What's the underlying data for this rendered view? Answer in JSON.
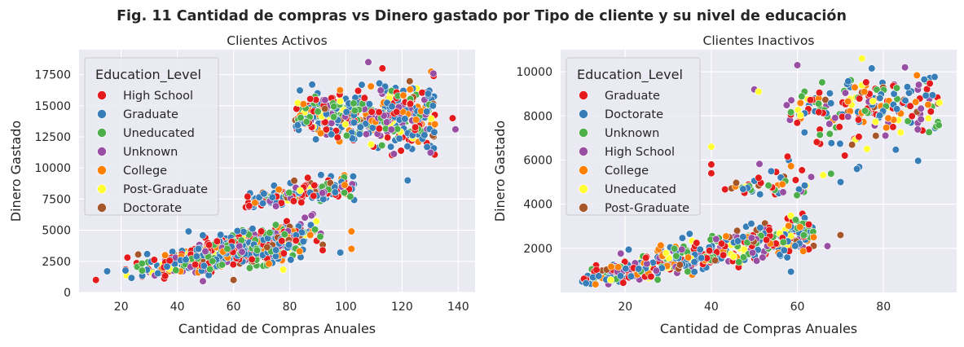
{
  "figure_title": "Fig. 11 Cantidad de compras vs Dinero gastado por Tipo de cliente y su nivel de educación",
  "colors": {
    "red": "#e41a1c",
    "blue": "#377eb8",
    "green": "#4daf4a",
    "purple": "#984ea3",
    "orange": "#ff7f00",
    "yellow": "#ffff33",
    "brown": "#a65628",
    "panel_bg": "#eaeaf2",
    "grid": "#ffffff"
  },
  "chart_data": [
    {
      "type": "scatter",
      "title": "Clientes Activos",
      "xlabel": "Cantidad de Compras Anuales",
      "ylabel": "Dinero Gastado",
      "xlim": [
        5,
        146
      ],
      "ylim": [
        0,
        19500
      ],
      "xticks": [
        20,
        40,
        60,
        80,
        100,
        120,
        140
      ],
      "yticks": [
        0,
        2500,
        5000,
        7500,
        10000,
        12500,
        15000,
        17500
      ],
      "grid": true,
      "legend": {
        "title": "Education_Level",
        "placement": "top-left",
        "entries": [
          {
            "label": "High School",
            "color": "#e41a1c"
          },
          {
            "label": "Graduate",
            "color": "#377eb8"
          },
          {
            "label": "Uneducated",
            "color": "#4daf4a"
          },
          {
            "label": "Unknown",
            "color": "#984ea3"
          },
          {
            "label": "College",
            "color": "#ff7f00"
          },
          {
            "label": "Post-Graduate",
            "color": "#ffff33"
          },
          {
            "label": "Doctorate",
            "color": "#a65628"
          }
        ]
      },
      "clusters": [
        {
          "x_range": [
            12,
            92
          ],
          "y_at_xmin": 1100,
          "y_at_xmax": 4800,
          "y_spread": 650,
          "count": 760
        },
        {
          "x_range": [
            64,
            103
          ],
          "y_at_xmin": 7300,
          "y_at_xmax": 8600,
          "y_spread": 420,
          "count": 190
        },
        {
          "x_range": [
            82,
            132
          ],
          "y_at_xmin": 14200,
          "y_at_xmax": 14200,
          "y_spread": 1100,
          "count": 460
        }
      ],
      "points": [
        {
          "x": 11,
          "y": 1000,
          "c": 0
        },
        {
          "x": 15,
          "y": 1700,
          "c": 1
        },
        {
          "x": 44,
          "y": 4900,
          "c": 1
        },
        {
          "x": 65,
          "y": 7700,
          "c": 0
        },
        {
          "x": 108,
          "y": 18500,
          "c": 3
        },
        {
          "x": 113,
          "y": 18000,
          "c": 0
        },
        {
          "x": 88,
          "y": 16700,
          "c": 1
        },
        {
          "x": 139,
          "y": 13100,
          "c": 3
        },
        {
          "x": 138,
          "y": 14000,
          "c": 0
        },
        {
          "x": 131,
          "y": 15000,
          "c": 1
        },
        {
          "x": 122,
          "y": 9000,
          "c": 1
        },
        {
          "x": 102,
          "y": 4900,
          "c": 4
        },
        {
          "x": 102,
          "y": 3500,
          "c": 4
        },
        {
          "x": 98,
          "y": 3200,
          "c": 1
        },
        {
          "x": 60,
          "y": 1000,
          "c": 6
        },
        {
          "x": 86,
          "y": 13700,
          "c": 2
        },
        {
          "x": 116,
          "y": 11700,
          "c": 1
        }
      ]
    },
    {
      "type": "scatter",
      "title": "Clientes Inactivos",
      "xlabel": "Cantidad de Compras Anuales",
      "ylabel": "Dinero Gastado",
      "xlim": [
        5,
        97
      ],
      "ylim": [
        0,
        11000
      ],
      "xticks": [
        20,
        40,
        60,
        80
      ],
      "yticks": [
        2000,
        4000,
        6000,
        8000,
        10000
      ],
      "grid": true,
      "legend": {
        "title": "Education_Level",
        "placement": "top-left",
        "entries": [
          {
            "label": "Graduate",
            "color": "#e41a1c"
          },
          {
            "label": "Doctorate",
            "color": "#377eb8"
          },
          {
            "label": "Unknown",
            "color": "#4daf4a"
          },
          {
            "label": "High School",
            "color": "#984ea3"
          },
          {
            "label": "College",
            "color": "#ff7f00"
          },
          {
            "label": "Uneducated",
            "color": "#ffff33"
          },
          {
            "label": "Post-Graduate",
            "color": "#a65628"
          }
        ]
      },
      "clusters": [
        {
          "x_range": [
            10,
            64
          ],
          "y_at_xmin": 650,
          "y_at_xmax": 2700,
          "y_spread": 420,
          "count": 440
        },
        {
          "x_range": [
            43,
            62
          ],
          "y_at_xmin": 4800,
          "y_at_xmax": 4800,
          "y_spread": 230,
          "count": 40
        },
        {
          "x_range": [
            57,
            93
          ],
          "y_at_xmin": 8400,
          "y_at_xmax": 8400,
          "y_spread": 750,
          "count": 190
        },
        {
          "x_range": [
            50,
            75
          ],
          "y_at_xmin": 5500,
          "y_at_xmax": 7000,
          "y_spread": 900,
          "count": 30
        }
      ],
      "points": [
        {
          "x": 40,
          "y": 6600,
          "c": 5
        },
        {
          "x": 40,
          "y": 5800,
          "c": 0
        },
        {
          "x": 40,
          "y": 5400,
          "c": 0
        },
        {
          "x": 75,
          "y": 10600,
          "c": 5
        },
        {
          "x": 85,
          "y": 10200,
          "c": 3
        },
        {
          "x": 93,
          "y": 8600,
          "c": 5
        },
        {
          "x": 91,
          "y": 8200,
          "c": 0
        },
        {
          "x": 70,
          "y": 2600,
          "c": 6
        },
        {
          "x": 67,
          "y": 2100,
          "c": 3
        },
        {
          "x": 60,
          "y": 10300,
          "c": 3
        },
        {
          "x": 50,
          "y": 9200,
          "c": 3
        },
        {
          "x": 51,
          "y": 9100,
          "c": 5
        }
      ]
    }
  ]
}
